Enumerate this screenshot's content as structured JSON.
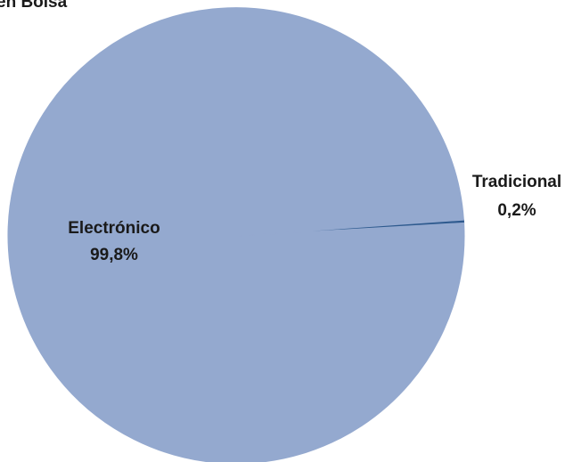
{
  "chart_data": {
    "type": "pie",
    "title": "en Bolsa",
    "slices": [
      {
        "label": "Tradicional",
        "value": 0.2,
        "value_label": "0,2%",
        "color": "#2e5a8e"
      },
      {
        "label": "Electrónico",
        "value": 99.8,
        "value_label": "99,8%",
        "color": "#94a9cf"
      }
    ],
    "legend": "none"
  }
}
